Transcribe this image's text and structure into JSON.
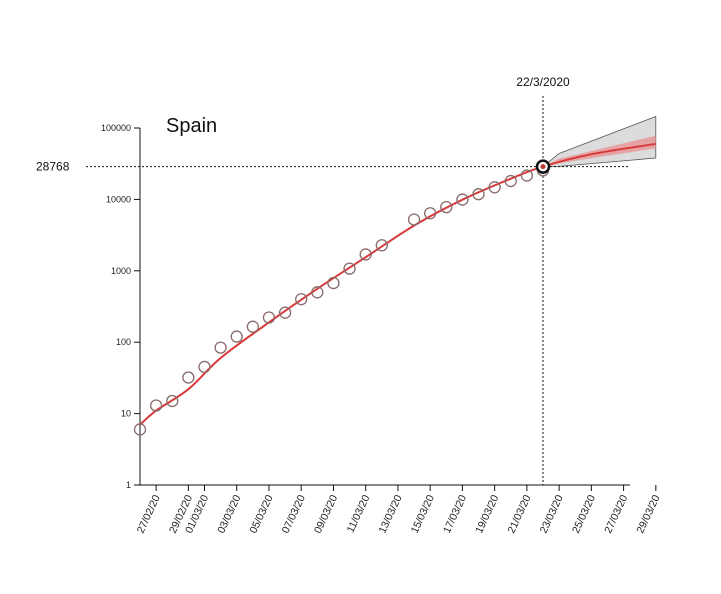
{
  "chart_data": {
    "type": "scatter",
    "title": "Spain",
    "yscale": "log",
    "ylim": [
      1,
      100000
    ],
    "yticks": [
      1,
      10,
      100,
      1000,
      10000,
      100000
    ],
    "ytick_labels": [
      "1",
      "10",
      "100",
      "1000",
      "10000",
      "100000"
    ],
    "xticks": [
      "27/02/20",
      "29/02/20",
      "01/03/20",
      "03/03/20",
      "05/03/20",
      "07/03/20",
      "09/03/20",
      "11/03/20",
      "13/03/20",
      "15/03/20",
      "17/03/20",
      "19/03/20",
      "21/03/20",
      "23/03/20",
      "25/03/20",
      "27/03/20",
      "29/03/20"
    ],
    "grid": false,
    "series": [
      {
        "type": "scatter",
        "marker": "open-circle",
        "color": "#8a6a6a",
        "x": [
          "26/02/20",
          "27/02/20",
          "28/02/20",
          "29/02/20",
          "01/03/20",
          "02/03/20",
          "03/03/20",
          "04/03/20",
          "05/03/20",
          "06/03/20",
          "07/03/20",
          "08/03/20",
          "09/03/20",
          "10/03/20",
          "11/03/20",
          "12/03/20",
          "14/03/20",
          "15/03/20",
          "16/03/20",
          "17/03/20",
          "18/03/20",
          "19/03/20",
          "20/03/20",
          "21/03/20",
          "22/03/20"
        ],
        "y": [
          6,
          13,
          15,
          32,
          45,
          84,
          120,
          165,
          222,
          259,
          400,
          500,
          673,
          1073,
          1695,
          2277,
          5232,
          6391,
          7798,
          9942,
          11826,
          14769,
          18077,
          21571,
          25496
        ]
      },
      {
        "type": "line",
        "color": "#d93a3a",
        "x": [
          "26/02/20",
          "27/02/20",
          "29/02/20",
          "02/03/20",
          "05/03/20",
          "08/03/20",
          "11/03/20",
          "14/03/20",
          "17/03/20",
          "20/03/20",
          "22/03/20",
          "25/03/20",
          "29/03/20"
        ],
        "y": [
          7,
          11,
          22,
          60,
          190,
          560,
          1550,
          4300,
          9900,
          19500,
          28768,
          43000,
          60000
        ]
      },
      {
        "type": "area",
        "color": "#9a9a9a",
        "x": [
          "22/03/20",
          "23/03/20",
          "29/03/20"
        ],
        "lower": [
          28768,
          29000,
          38000
        ],
        "upper": [
          28768,
          44000,
          145000
        ]
      },
      {
        "type": "area",
        "color": "#e89090",
        "x": [
          "22/03/20",
          "23/03/20",
          "29/03/20"
        ],
        "lower": [
          28768,
          32000,
          52000
        ],
        "upper": [
          28768,
          37000,
          78000
        ]
      }
    ],
    "annotations": [
      {
        "text": "22/3/2020",
        "x": "22/03/20"
      },
      {
        "text": "28768",
        "y": 28768
      }
    ],
    "highlight_point": {
      "x": "22/03/20",
      "y": 28768
    }
  }
}
